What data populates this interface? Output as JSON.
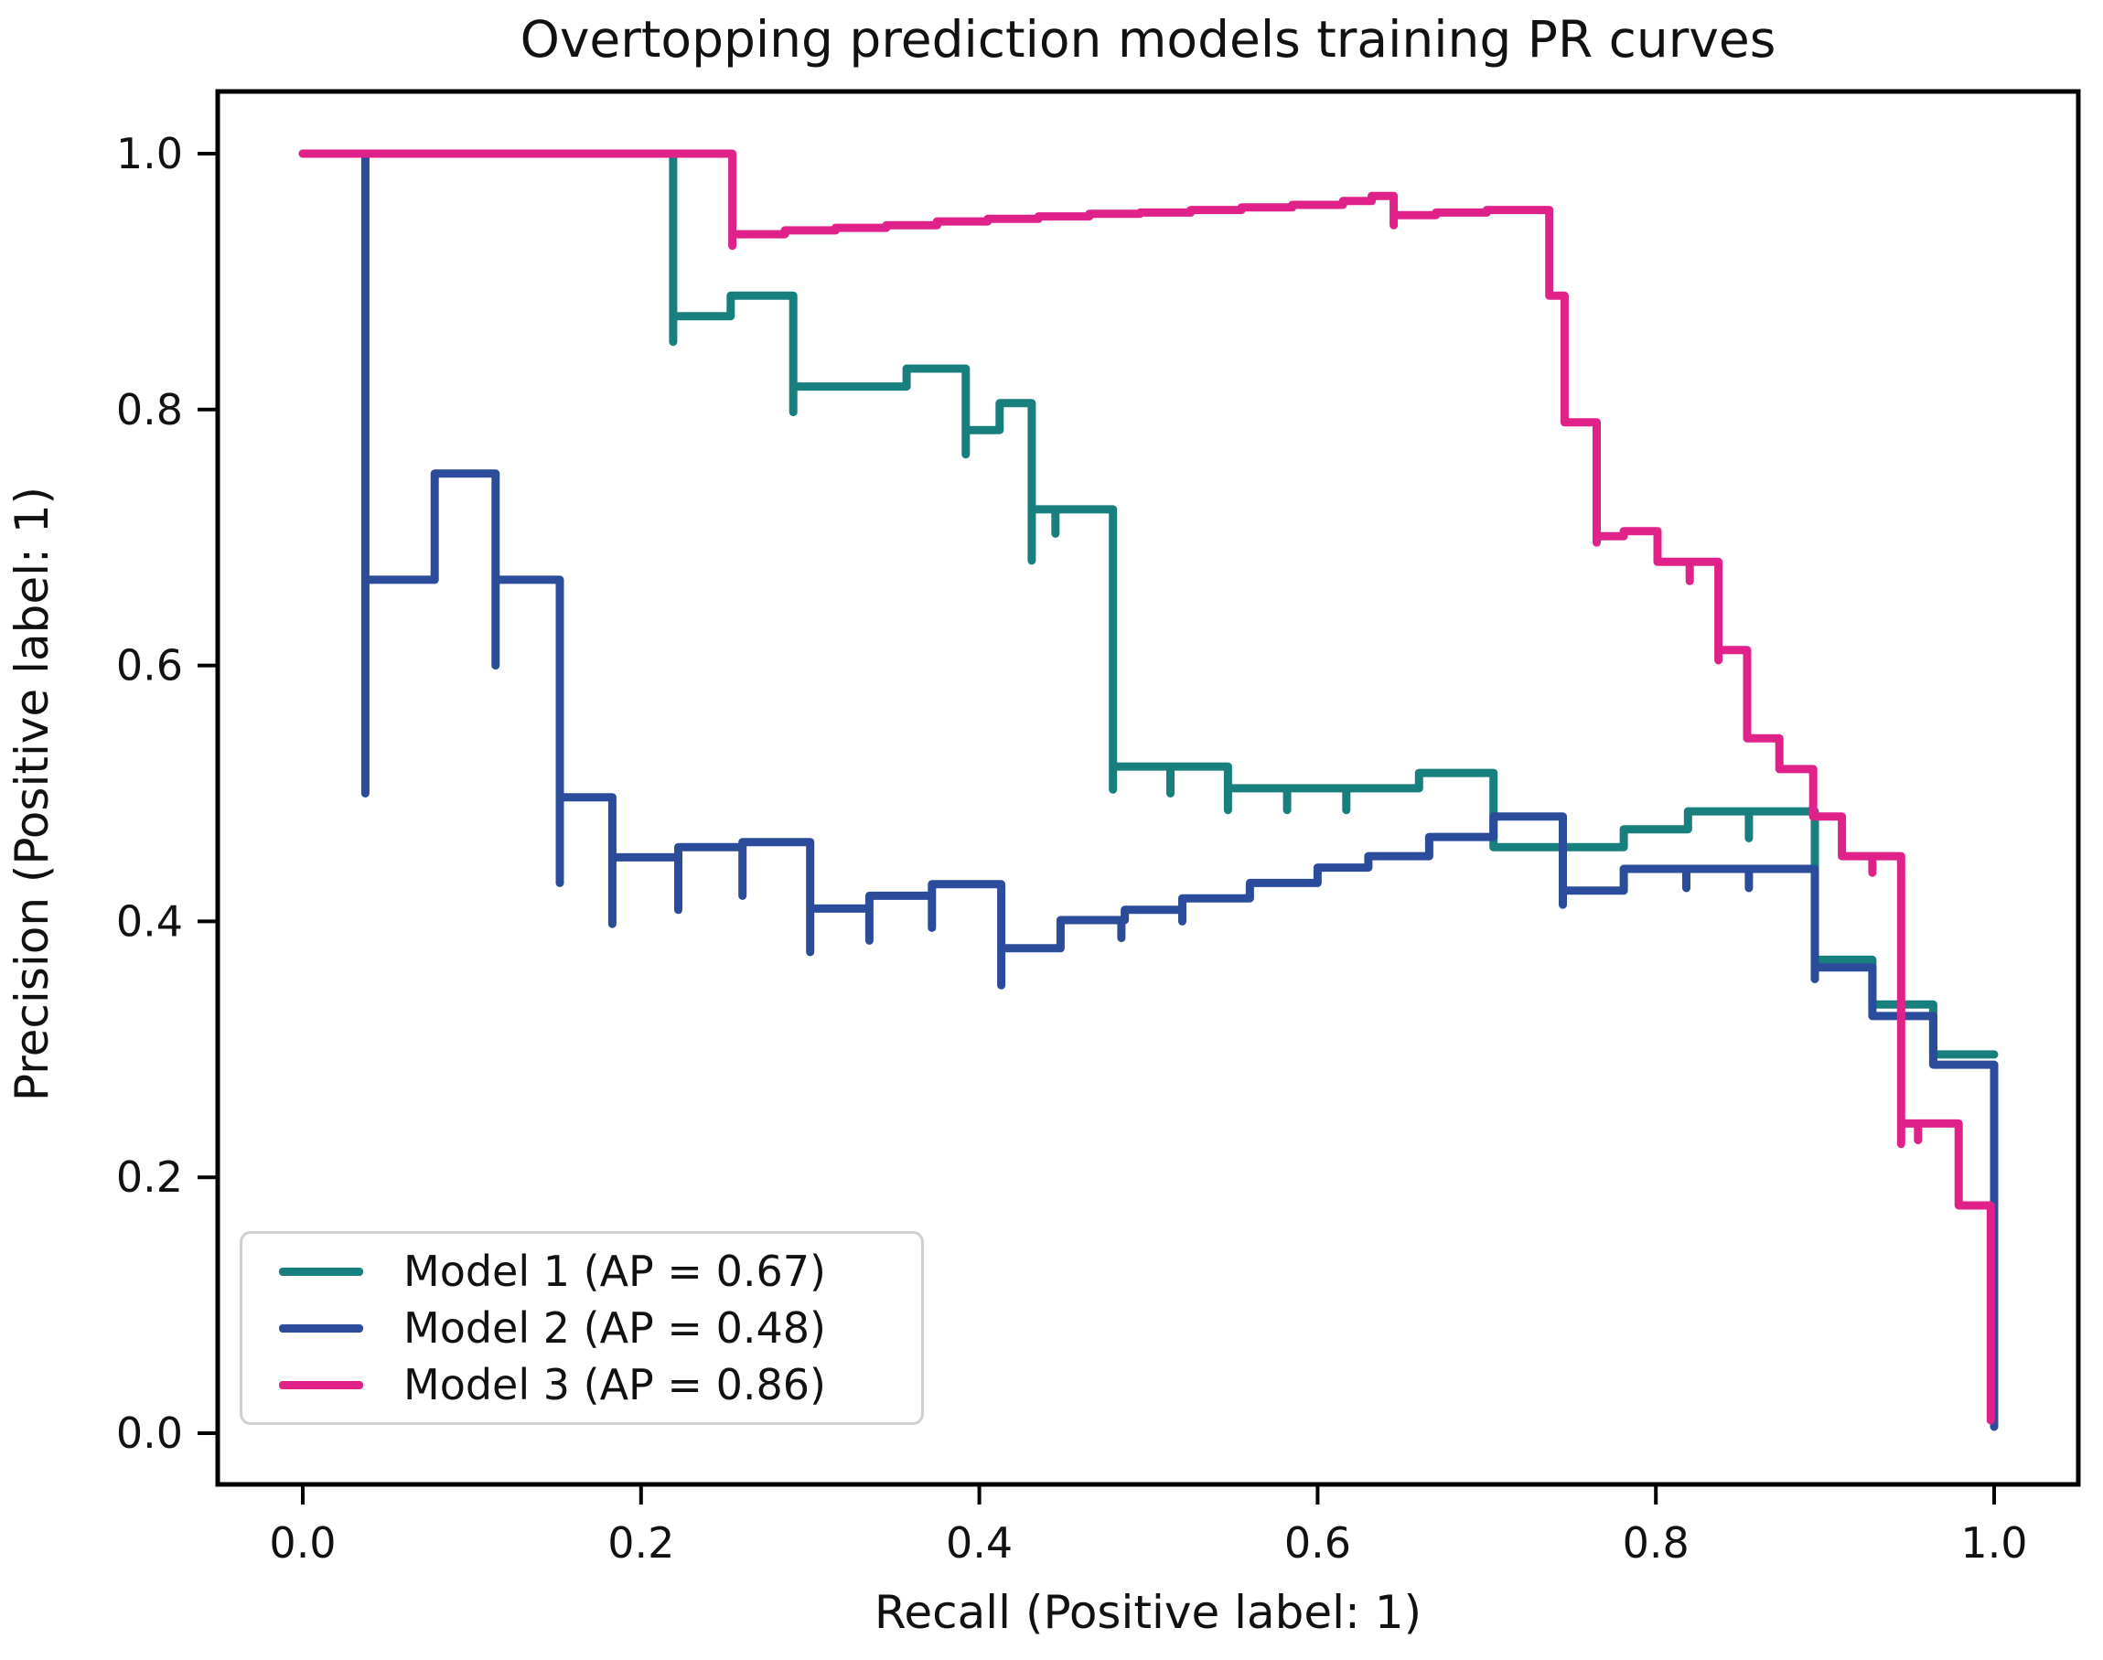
{
  "chart_data": {
    "type": "line",
    "title": "Overtopping prediction models training PR curves",
    "xlabel": "Recall (Positive label: 1)",
    "ylabel": "Precision (Positive label: 1)",
    "xlim": [
      -0.05,
      1.05
    ],
    "ylim": [
      -0.04,
      1.05
    ],
    "xticks": [
      0.0,
      0.2,
      0.4,
      0.6,
      0.8,
      1.0
    ],
    "yticks": [
      0.0,
      0.2,
      0.4,
      0.6,
      0.8,
      1.0
    ],
    "grid": false,
    "legend_position": "lower left",
    "curve_style": "step-outline-vertices",
    "series": [
      {
        "name": "model-1",
        "legend_label": "Model 1 (AP = 0.67)",
        "ap": 0.67,
        "color": "#17807e",
        "points": [
          [
            0.0,
            1.0
          ],
          [
            0.219,
            1.0
          ],
          [
            0.219,
            0.853
          ],
          [
            0.219,
            0.873
          ],
          [
            0.253,
            0.873
          ],
          [
            0.253,
            0.889
          ],
          [
            0.29,
            0.889
          ],
          [
            0.29,
            0.798
          ],
          [
            0.29,
            0.818
          ],
          [
            0.357,
            0.818
          ],
          [
            0.357,
            0.832
          ],
          [
            0.392,
            0.832
          ],
          [
            0.392,
            0.765
          ],
          [
            0.392,
            0.784
          ],
          [
            0.412,
            0.784
          ],
          [
            0.412,
            0.805
          ],
          [
            0.431,
            0.805
          ],
          [
            0.431,
            0.682
          ],
          [
            0.431,
            0.722
          ],
          [
            0.445,
            0.722
          ],
          [
            0.445,
            0.703
          ],
          [
            0.445,
            0.722
          ],
          [
            0.479,
            0.722
          ],
          [
            0.479,
            0.503
          ],
          [
            0.479,
            0.521
          ],
          [
            0.513,
            0.521
          ],
          [
            0.513,
            0.5
          ],
          [
            0.513,
            0.521
          ],
          [
            0.547,
            0.521
          ],
          [
            0.547,
            0.487
          ],
          [
            0.547,
            0.504
          ],
          [
            0.582,
            0.504
          ],
          [
            0.582,
            0.487
          ],
          [
            0.582,
            0.504
          ],
          [
            0.617,
            0.504
          ],
          [
            0.617,
            0.487
          ],
          [
            0.617,
            0.504
          ],
          [
            0.66,
            0.504
          ],
          [
            0.66,
            0.516
          ],
          [
            0.704,
            0.516
          ],
          [
            0.704,
            0.458
          ],
          [
            0.781,
            0.458
          ],
          [
            0.781,
            0.472
          ],
          [
            0.819,
            0.472
          ],
          [
            0.819,
            0.486
          ],
          [
            0.855,
            0.486
          ],
          [
            0.855,
            0.465
          ],
          [
            0.855,
            0.486
          ],
          [
            0.894,
            0.486
          ],
          [
            0.894,
            0.355
          ],
          [
            0.894,
            0.37
          ],
          [
            0.928,
            0.37
          ],
          [
            0.928,
            0.335
          ],
          [
            0.964,
            0.335
          ],
          [
            0.964,
            0.296
          ],
          [
            1.0,
            0.296
          ]
        ]
      },
      {
        "name": "model-2",
        "legend_label": "Model 2 (AP = 0.48)",
        "ap": 0.48,
        "color": "#2b4b9b",
        "points": [
          [
            0.037,
            1.0
          ],
          [
            0.037,
            0.5
          ],
          [
            0.037,
            0.667
          ],
          [
            0.078,
            0.667
          ],
          [
            0.078,
            0.75
          ],
          [
            0.114,
            0.75
          ],
          [
            0.114,
            0.6
          ],
          [
            0.114,
            0.667
          ],
          [
            0.152,
            0.667
          ],
          [
            0.152,
            0.43
          ],
          [
            0.152,
            0.497
          ],
          [
            0.183,
            0.497
          ],
          [
            0.183,
            0.398
          ],
          [
            0.183,
            0.45
          ],
          [
            0.222,
            0.45
          ],
          [
            0.222,
            0.409
          ],
          [
            0.222,
            0.458
          ],
          [
            0.26,
            0.458
          ],
          [
            0.26,
            0.42
          ],
          [
            0.26,
            0.462
          ],
          [
            0.3,
            0.462
          ],
          [
            0.3,
            0.376
          ],
          [
            0.3,
            0.41
          ],
          [
            0.335,
            0.41
          ],
          [
            0.335,
            0.385
          ],
          [
            0.335,
            0.42
          ],
          [
            0.372,
            0.42
          ],
          [
            0.372,
            0.395
          ],
          [
            0.372,
            0.429
          ],
          [
            0.413,
            0.429
          ],
          [
            0.413,
            0.35
          ],
          [
            0.413,
            0.379
          ],
          [
            0.448,
            0.379
          ],
          [
            0.448,
            0.401
          ],
          [
            0.484,
            0.401
          ],
          [
            0.484,
            0.387
          ],
          [
            0.484,
            0.401
          ],
          [
            0.486,
            0.401
          ],
          [
            0.486,
            0.409
          ],
          [
            0.52,
            0.409
          ],
          [
            0.52,
            0.4
          ],
          [
            0.52,
            0.418
          ],
          [
            0.56,
            0.418
          ],
          [
            0.56,
            0.43
          ],
          [
            0.6,
            0.43
          ],
          [
            0.6,
            0.442
          ],
          [
            0.63,
            0.442
          ],
          [
            0.63,
            0.451
          ],
          [
            0.666,
            0.451
          ],
          [
            0.666,
            0.466
          ],
          [
            0.704,
            0.466
          ],
          [
            0.704,
            0.482
          ],
          [
            0.745,
            0.482
          ],
          [
            0.745,
            0.413
          ],
          [
            0.745,
            0.424
          ],
          [
            0.781,
            0.424
          ],
          [
            0.781,
            0.441
          ],
          [
            0.818,
            0.441
          ],
          [
            0.818,
            0.426
          ],
          [
            0.818,
            0.441
          ],
          [
            0.855,
            0.441
          ],
          [
            0.855,
            0.426
          ],
          [
            0.855,
            0.441
          ],
          [
            0.894,
            0.441
          ],
          [
            0.894,
            0.355
          ],
          [
            0.894,
            0.364
          ],
          [
            0.928,
            0.364
          ],
          [
            0.928,
            0.326
          ],
          [
            0.964,
            0.326
          ],
          [
            0.964,
            0.288
          ],
          [
            1.0,
            0.288
          ],
          [
            1.0,
            0.005
          ]
        ]
      },
      {
        "name": "model-3",
        "legend_label": "Model 3 (AP = 0.86)",
        "ap": 0.86,
        "color": "#e0218a",
        "points": [
          [
            0.0,
            1.0
          ],
          [
            0.254,
            1.0
          ],
          [
            0.254,
            0.928
          ],
          [
            0.254,
            0.937
          ],
          [
            0.285,
            0.937
          ],
          [
            0.285,
            0.94
          ],
          [
            0.315,
            0.94
          ],
          [
            0.315,
            0.942
          ],
          [
            0.345,
            0.942
          ],
          [
            0.345,
            0.944
          ],
          [
            0.375,
            0.944
          ],
          [
            0.375,
            0.947
          ],
          [
            0.405,
            0.947
          ],
          [
            0.405,
            0.949
          ],
          [
            0.435,
            0.949
          ],
          [
            0.435,
            0.951
          ],
          [
            0.465,
            0.951
          ],
          [
            0.465,
            0.953
          ],
          [
            0.495,
            0.953
          ],
          [
            0.495,
            0.954
          ],
          [
            0.525,
            0.954
          ],
          [
            0.525,
            0.956
          ],
          [
            0.555,
            0.956
          ],
          [
            0.555,
            0.958
          ],
          [
            0.585,
            0.958
          ],
          [
            0.585,
            0.96
          ],
          [
            0.615,
            0.96
          ],
          [
            0.615,
            0.963
          ],
          [
            0.632,
            0.963
          ],
          [
            0.632,
            0.967
          ],
          [
            0.645,
            0.967
          ],
          [
            0.645,
            0.944
          ],
          [
            0.645,
            0.952
          ],
          [
            0.67,
            0.952
          ],
          [
            0.67,
            0.954
          ],
          [
            0.7,
            0.954
          ],
          [
            0.7,
            0.956
          ],
          [
            0.737,
            0.956
          ],
          [
            0.737,
            0.889
          ],
          [
            0.746,
            0.889
          ],
          [
            0.746,
            0.79
          ],
          [
            0.765,
            0.79
          ],
          [
            0.765,
            0.696
          ],
          [
            0.765,
            0.701
          ],
          [
            0.781,
            0.701
          ],
          [
            0.781,
            0.705
          ],
          [
            0.801,
            0.705
          ],
          [
            0.801,
            0.681
          ],
          [
            0.82,
            0.681
          ],
          [
            0.82,
            0.666
          ],
          [
            0.82,
            0.681
          ],
          [
            0.837,
            0.681
          ],
          [
            0.837,
            0.604
          ],
          [
            0.837,
            0.612
          ],
          [
            0.854,
            0.612
          ],
          [
            0.854,
            0.543
          ],
          [
            0.873,
            0.543
          ],
          [
            0.873,
            0.519
          ],
          [
            0.893,
            0.519
          ],
          [
            0.893,
            0.482
          ],
          [
            0.91,
            0.482
          ],
          [
            0.91,
            0.451
          ],
          [
            0.928,
            0.451
          ],
          [
            0.928,
            0.438
          ],
          [
            0.928,
            0.451
          ],
          [
            0.945,
            0.451
          ],
          [
            0.945,
            0.226
          ],
          [
            0.945,
            0.242
          ],
          [
            0.955,
            0.242
          ],
          [
            0.955,
            0.229
          ],
          [
            0.955,
            0.242
          ],
          [
            0.979,
            0.242
          ],
          [
            0.979,
            0.178
          ],
          [
            0.998,
            0.178
          ],
          [
            0.998,
            0.01
          ]
        ]
      }
    ]
  },
  "colors": {
    "spine": "#000000",
    "tick_text": "#111111",
    "legend_border": "#d0d0d0",
    "background": "#ffffff"
  }
}
